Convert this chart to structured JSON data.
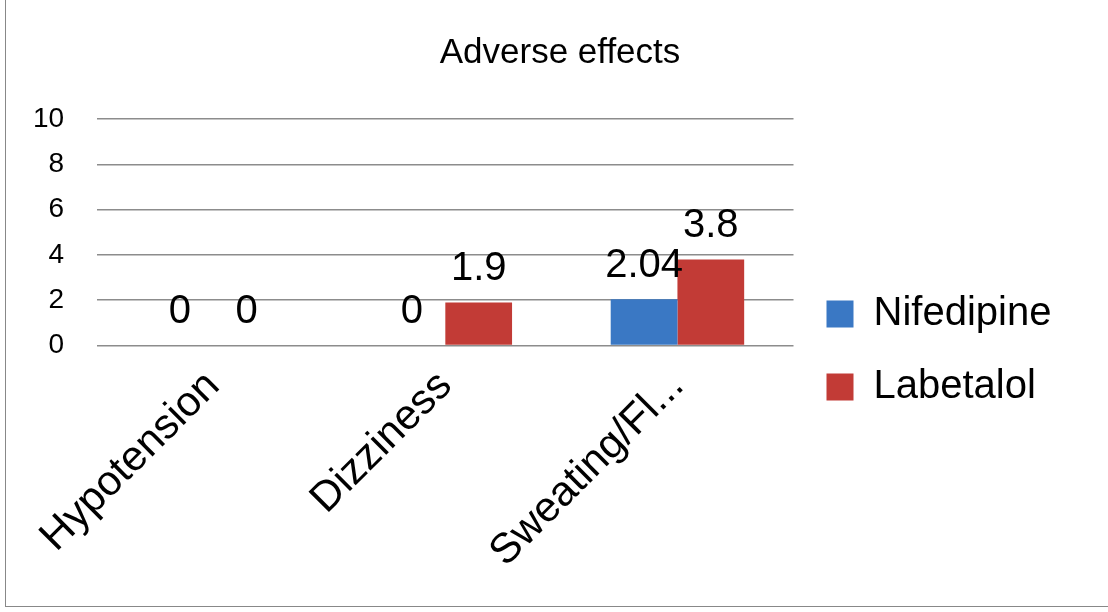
{
  "chart_data": {
    "type": "bar",
    "title": "Adverse effects",
    "categories": [
      "Hypotension",
      "Dizziness",
      "Sweating/Fl..."
    ],
    "series": [
      {
        "name": "Nifedipine",
        "color": "#3a78c4",
        "values": [
          0,
          0,
          2.04
        ]
      },
      {
        "name": "Labetalol",
        "color": "#c23b36",
        "values": [
          0,
          1.9,
          3.8
        ]
      }
    ],
    "ylim": [
      0,
      10
    ],
    "yticks": [
      0,
      2,
      4,
      6,
      8,
      10
    ],
    "grid": "y",
    "legend": "right",
    "data_labels": true
  }
}
